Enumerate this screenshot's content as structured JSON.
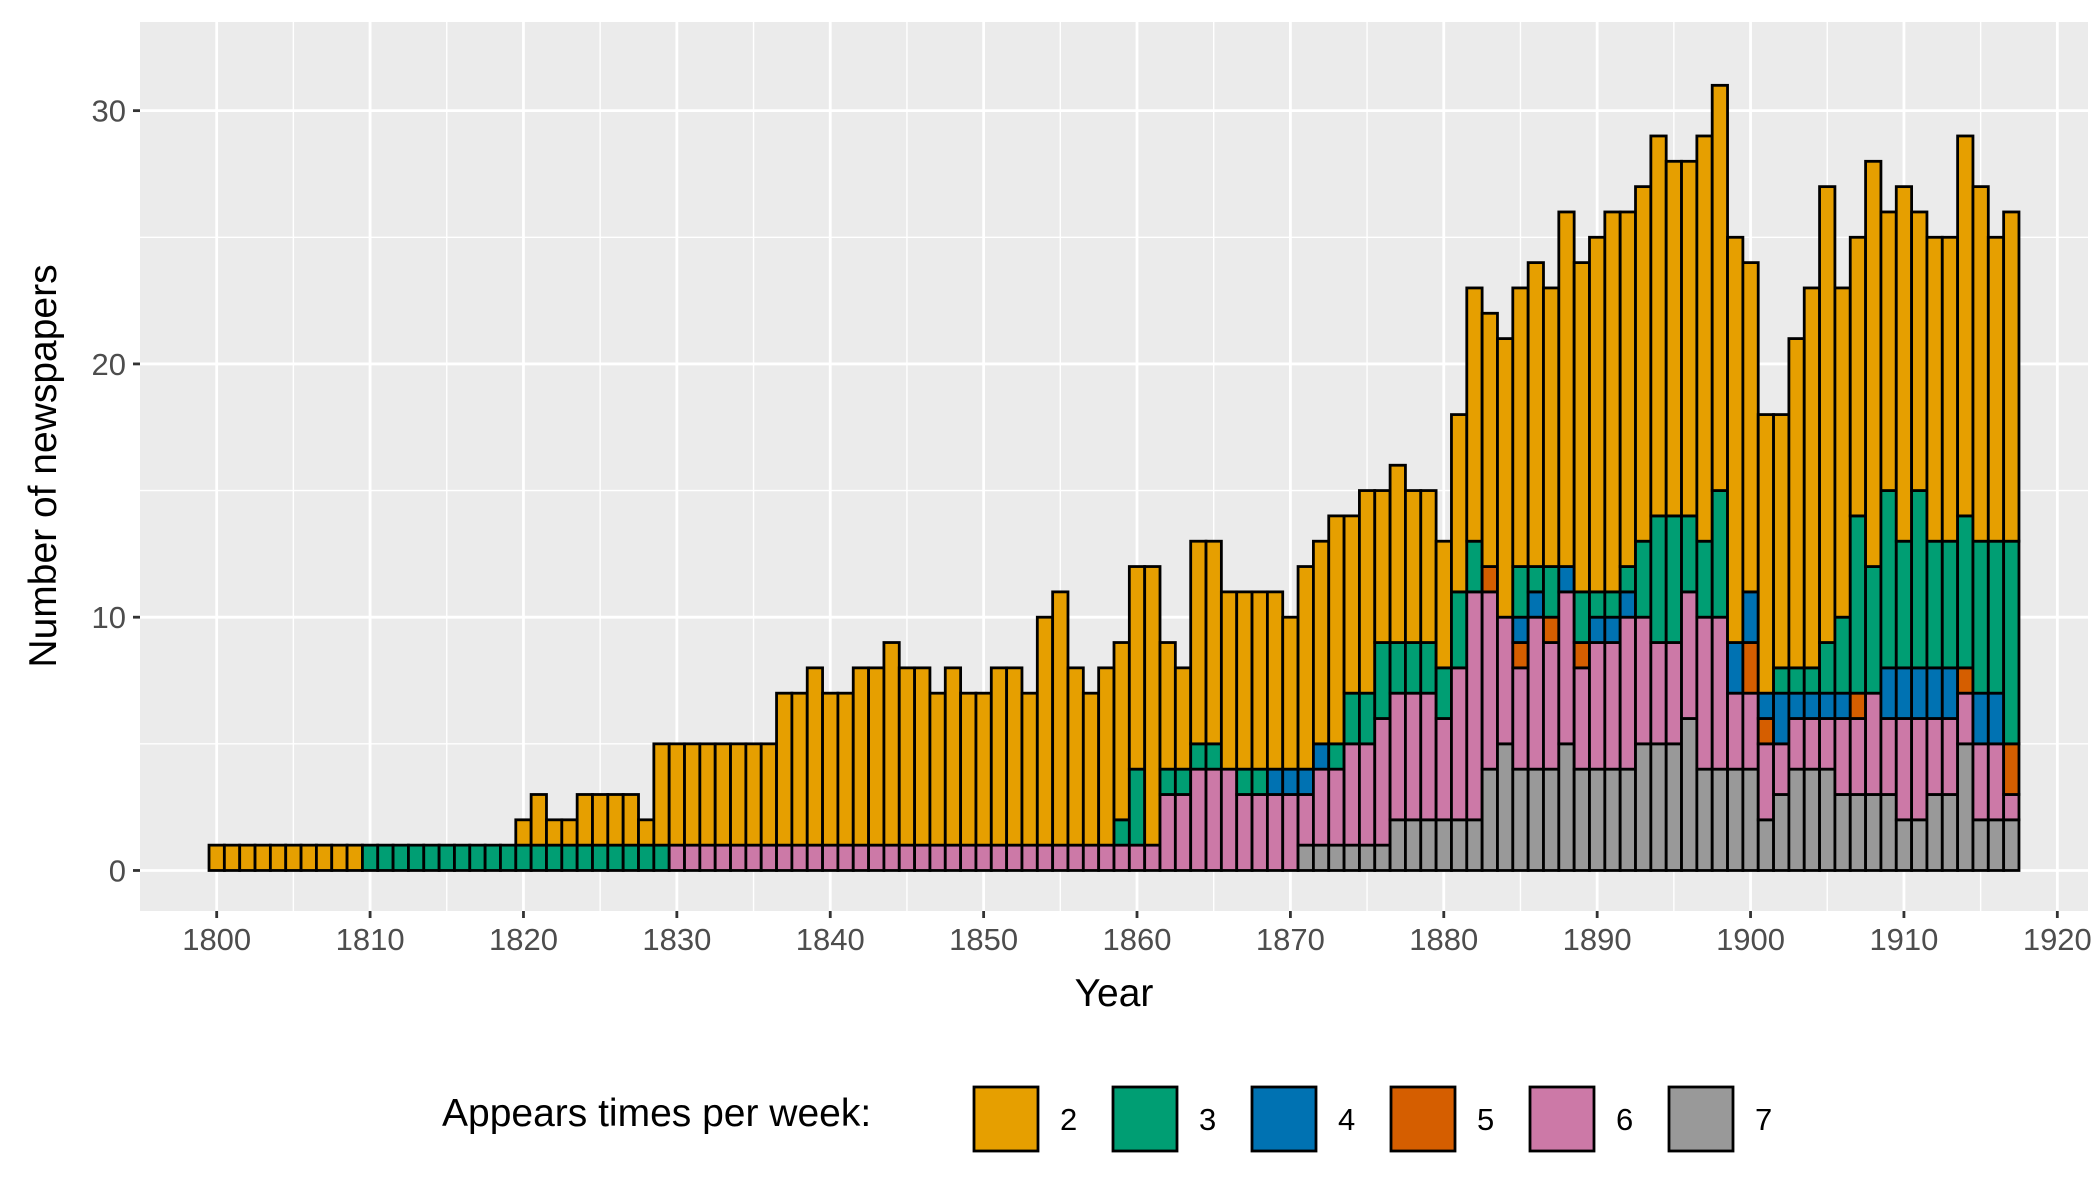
{
  "chart_data": {
    "type": "bar",
    "stacked": true,
    "title": "",
    "xlabel": "Year",
    "ylabel": "Number of newspapers",
    "xlim": [
      1795,
      1922
    ],
    "ylim": [
      -1.6,
      33.5
    ],
    "x_ticks": [
      1800,
      1810,
      1820,
      1830,
      1840,
      1850,
      1860,
      1870,
      1880,
      1890,
      1900,
      1910,
      1920
    ],
    "y_ticks": [
      0,
      10,
      20,
      30
    ],
    "grid": true,
    "legend": {
      "title": "Appears times per week:",
      "position": "bottom",
      "entries": [
        {
          "label": "2",
          "color": "#E69F00"
        },
        {
          "label": "3",
          "color": "#009E73"
        },
        {
          "label": "4",
          "color": "#0072B2"
        },
        {
          "label": "5",
          "color": "#D55E00"
        },
        {
          "label": "6",
          "color": "#CC79A7"
        },
        {
          "label": "7",
          "color": "#999999"
        }
      ]
    },
    "x_years": [
      1800,
      1801,
      1802,
      1803,
      1804,
      1805,
      1806,
      1807,
      1808,
      1809,
      1810,
      1811,
      1812,
      1813,
      1814,
      1815,
      1816,
      1817,
      1818,
      1819,
      1820,
      1821,
      1822,
      1823,
      1824,
      1825,
      1826,
      1827,
      1828,
      1829,
      1830,
      1831,
      1832,
      1833,
      1834,
      1835,
      1836,
      1837,
      1838,
      1839,
      1840,
      1841,
      1842,
      1843,
      1844,
      1845,
      1846,
      1847,
      1848,
      1849,
      1850,
      1851,
      1852,
      1853,
      1854,
      1855,
      1856,
      1857,
      1858,
      1859,
      1860,
      1861,
      1862,
      1863,
      1864,
      1865,
      1866,
      1867,
      1868,
      1869,
      1870,
      1871,
      1872,
      1873,
      1874,
      1875,
      1876,
      1877,
      1878,
      1879,
      1880,
      1881,
      1882,
      1883,
      1884,
      1885,
      1886,
      1887,
      1888,
      1889,
      1890,
      1891,
      1892,
      1893,
      1894,
      1895,
      1896,
      1897,
      1898,
      1899,
      1900,
      1901,
      1902,
      1903,
      1904,
      1905,
      1906,
      1907,
      1908,
      1909,
      1910,
      1911,
      1912,
      1913,
      1914,
      1915,
      1916,
      1917
    ],
    "series": [
      {
        "name": "7",
        "color": "#999999",
        "values": [
          0,
          0,
          0,
          0,
          0,
          0,
          0,
          0,
          0,
          0,
          0,
          0,
          0,
          0,
          0,
          0,
          0,
          0,
          0,
          0,
          0,
          0,
          0,
          0,
          0,
          0,
          0,
          0,
          0,
          0,
          0,
          0,
          0,
          0,
          0,
          0,
          0,
          0,
          0,
          0,
          0,
          0,
          0,
          0,
          0,
          0,
          0,
          0,
          0,
          0,
          0,
          0,
          0,
          0,
          0,
          0,
          0,
          0,
          0,
          0,
          0,
          0,
          0,
          0,
          0,
          0,
          0,
          0,
          0,
          0,
          0,
          1,
          1,
          1,
          1,
          1,
          1,
          2,
          2,
          2,
          2,
          2,
          2,
          4,
          5,
          4,
          4,
          4,
          5,
          4,
          4,
          4,
          4,
          5,
          5,
          5,
          6,
          4,
          4,
          4,
          4,
          2,
          3,
          4,
          4,
          4,
          3,
          3,
          3,
          3,
          2,
          2,
          3,
          3,
          5,
          2,
          2,
          2
        ]
      },
      {
        "name": "6",
        "color": "#CC79A7",
        "values": [
          0,
          0,
          0,
          0,
          0,
          0,
          0,
          0,
          0,
          0,
          0,
          0,
          0,
          0,
          0,
          0,
          0,
          0,
          0,
          0,
          0,
          0,
          0,
          0,
          0,
          0,
          0,
          0,
          0,
          0,
          1,
          1,
          1,
          1,
          1,
          1,
          1,
          1,
          1,
          1,
          1,
          1,
          1,
          1,
          1,
          1,
          1,
          1,
          1,
          1,
          1,
          1,
          1,
          1,
          1,
          1,
          1,
          1,
          1,
          1,
          1,
          1,
          3,
          3,
          4,
          4,
          4,
          3,
          3,
          3,
          3,
          2,
          3,
          3,
          4,
          4,
          5,
          5,
          5,
          5,
          4,
          6,
          9,
          7,
          5,
          4,
          6,
          5,
          6,
          4,
          5,
          5,
          6,
          5,
          4,
          4,
          5,
          6,
          6,
          3,
          3,
          3,
          2,
          2,
          2,
          2,
          3,
          3,
          4,
          3,
          4,
          4,
          3,
          3,
          2,
          3,
          3,
          1
        ]
      },
      {
        "name": "5",
        "color": "#D55E00",
        "values": [
          0,
          0,
          0,
          0,
          0,
          0,
          0,
          0,
          0,
          0,
          0,
          0,
          0,
          0,
          0,
          0,
          0,
          0,
          0,
          0,
          0,
          0,
          0,
          0,
          0,
          0,
          0,
          0,
          0,
          0,
          0,
          0,
          0,
          0,
          0,
          0,
          0,
          0,
          0,
          0,
          0,
          0,
          0,
          0,
          0,
          0,
          0,
          0,
          0,
          0,
          0,
          0,
          0,
          0,
          0,
          0,
          0,
          0,
          0,
          0,
          0,
          0,
          0,
          0,
          0,
          0,
          0,
          0,
          0,
          0,
          0,
          0,
          0,
          0,
          0,
          0,
          0,
          0,
          0,
          0,
          0,
          0,
          0,
          1,
          0,
          1,
          0,
          1,
          0,
          1,
          0,
          0,
          0,
          0,
          0,
          0,
          0,
          0,
          0,
          0,
          2,
          1,
          0,
          0,
          0,
          0,
          0,
          1,
          0,
          0,
          0,
          0,
          0,
          0,
          1,
          0,
          0,
          2
        ]
      },
      {
        "name": "4",
        "color": "#0072B2",
        "values": [
          0,
          0,
          0,
          0,
          0,
          0,
          0,
          0,
          0,
          0,
          0,
          0,
          0,
          0,
          0,
          0,
          0,
          0,
          0,
          0,
          0,
          0,
          0,
          0,
          0,
          0,
          0,
          0,
          0,
          0,
          0,
          0,
          0,
          0,
          0,
          0,
          0,
          0,
          0,
          0,
          0,
          0,
          0,
          0,
          0,
          0,
          0,
          0,
          0,
          0,
          0,
          0,
          0,
          0,
          0,
          0,
          0,
          0,
          0,
          0,
          0,
          0,
          0,
          0,
          0,
          0,
          0,
          0,
          0,
          1,
          1,
          1,
          1,
          0,
          0,
          0,
          0,
          0,
          0,
          0,
          0,
          0,
          0,
          0,
          0,
          1,
          1,
          0,
          1,
          0,
          1,
          1,
          1,
          0,
          0,
          0,
          0,
          0,
          0,
          2,
          2,
          1,
          2,
          1,
          1,
          1,
          1,
          0,
          0,
          2,
          2,
          2,
          2,
          2,
          0,
          2,
          2,
          0
        ]
      },
      {
        "name": "3",
        "color": "#009E73",
        "values": [
          0,
          0,
          0,
          0,
          0,
          0,
          0,
          0,
          0,
          0,
          1,
          1,
          1,
          1,
          1,
          1,
          1,
          1,
          1,
          1,
          1,
          1,
          1,
          1,
          1,
          1,
          1,
          1,
          1,
          1,
          0,
          0,
          0,
          0,
          0,
          0,
          0,
          0,
          0,
          0,
          0,
          0,
          0,
          0,
          0,
          0,
          0,
          0,
          0,
          0,
          0,
          0,
          0,
          0,
          0,
          0,
          0,
          0,
          0,
          1,
          3,
          0,
          1,
          1,
          1,
          1,
          0,
          1,
          1,
          0,
          0,
          0,
          0,
          1,
          2,
          2,
          3,
          2,
          2,
          2,
          2,
          3,
          2,
          0,
          0,
          2,
          1,
          2,
          0,
          2,
          1,
          1,
          1,
          3,
          5,
          5,
          3,
          3,
          5,
          0,
          0,
          0,
          1,
          1,
          1,
          2,
          3,
          7,
          5,
          7,
          5,
          7,
          5,
          5,
          6,
          6,
          6,
          8
        ]
      },
      {
        "name": "2",
        "color": "#E69F00",
        "values": [
          1,
          1,
          1,
          1,
          1,
          1,
          1,
          1,
          1,
          1,
          0,
          0,
          0,
          0,
          0,
          0,
          0,
          0,
          0,
          0,
          1,
          2,
          1,
          1,
          2,
          2,
          2,
          2,
          1,
          4,
          4,
          4,
          4,
          4,
          4,
          4,
          4,
          6,
          6,
          7,
          6,
          6,
          7,
          7,
          8,
          7,
          7,
          6,
          7,
          6,
          6,
          7,
          7,
          6,
          9,
          10,
          7,
          6,
          7,
          7,
          8,
          11,
          5,
          4,
          8,
          8,
          7,
          7,
          7,
          7,
          6,
          8,
          8,
          9,
          7,
          8,
          6,
          7,
          6,
          6,
          5,
          7,
          10,
          10,
          11,
          11,
          12,
          11,
          14,
          13,
          14,
          15,
          14,
          14,
          15,
          14,
          14,
          16,
          16,
          16,
          13,
          11,
          10,
          13,
          15,
          18,
          13,
          11,
          16,
          11,
          14,
          11,
          12,
          12,
          15,
          14,
          12,
          13
        ]
      }
    ]
  }
}
